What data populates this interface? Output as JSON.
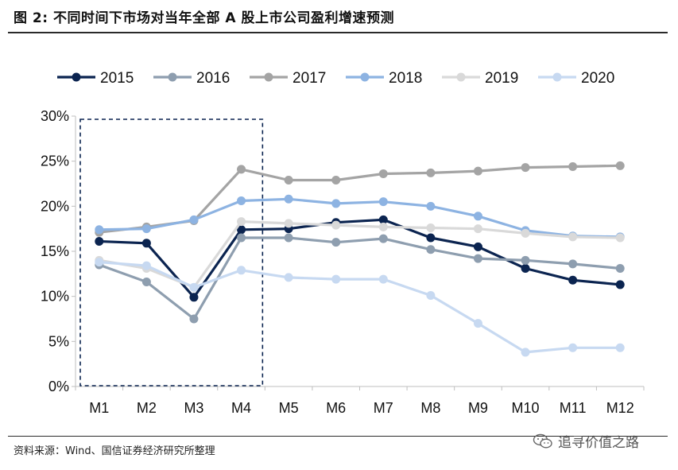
{
  "header": {
    "title": "图 2:  不同时间下市场对当年全部 A 股上市公司盈利增速预测"
  },
  "footer": {
    "source": "资料来源：Wind、国信证券经济研究所整理",
    "watermark": "追寻价值之路"
  },
  "colors": {
    "2015": "#0b2450",
    "2016": "#8e9eaf",
    "2017": "#a4a4a4",
    "2018": "#8db3e2",
    "2019": "#d9d9d9",
    "2020": "#c7d9f1",
    "highlight_box": "#0b2450"
  },
  "chart_data": {
    "type": "line",
    "title": "",
    "xlabel": "",
    "ylabel": "",
    "categories": [
      "M1",
      "M2",
      "M3",
      "M4",
      "M5",
      "M6",
      "M7",
      "M8",
      "M9",
      "M10",
      "M11",
      "M12"
    ],
    "ylim": [
      0,
      30
    ],
    "yticks": [
      0,
      5,
      10,
      15,
      20,
      25,
      30
    ],
    "ytick_labels": [
      "0%",
      "5%",
      "10%",
      "15%",
      "20%",
      "25%",
      "30%"
    ],
    "legend_position": "top",
    "highlight_range": [
      "M1",
      "M4"
    ],
    "series": [
      {
        "name": "2015",
        "values": [
          16.1,
          15.9,
          9.9,
          17.4,
          17.5,
          18.2,
          18.5,
          16.5,
          15.5,
          13.1,
          11.8,
          11.3
        ]
      },
      {
        "name": "2016",
        "values": [
          13.5,
          11.6,
          7.5,
          16.5,
          16.5,
          16.0,
          16.4,
          15.2,
          14.2,
          14.0,
          13.6,
          13.1
        ]
      },
      {
        "name": "2017",
        "values": [
          17.1,
          17.7,
          18.4,
          24.1,
          22.9,
          22.9,
          23.6,
          23.7,
          23.9,
          24.3,
          24.4,
          24.5
        ]
      },
      {
        "name": "2018",
        "values": [
          17.4,
          17.5,
          18.5,
          20.6,
          20.8,
          20.3,
          20.5,
          20.0,
          18.9,
          17.3,
          16.7,
          16.6
        ]
      },
      {
        "name": "2019",
        "values": [
          14.0,
          13.1,
          11.0,
          18.3,
          18.1,
          17.9,
          17.7,
          17.6,
          17.5,
          17.0,
          16.6,
          16.5
        ]
      },
      {
        "name": "2020",
        "values": [
          13.8,
          13.4,
          11.0,
          12.9,
          12.1,
          11.9,
          11.9,
          10.1,
          7.0,
          3.8,
          4.3,
          4.3
        ]
      }
    ]
  }
}
